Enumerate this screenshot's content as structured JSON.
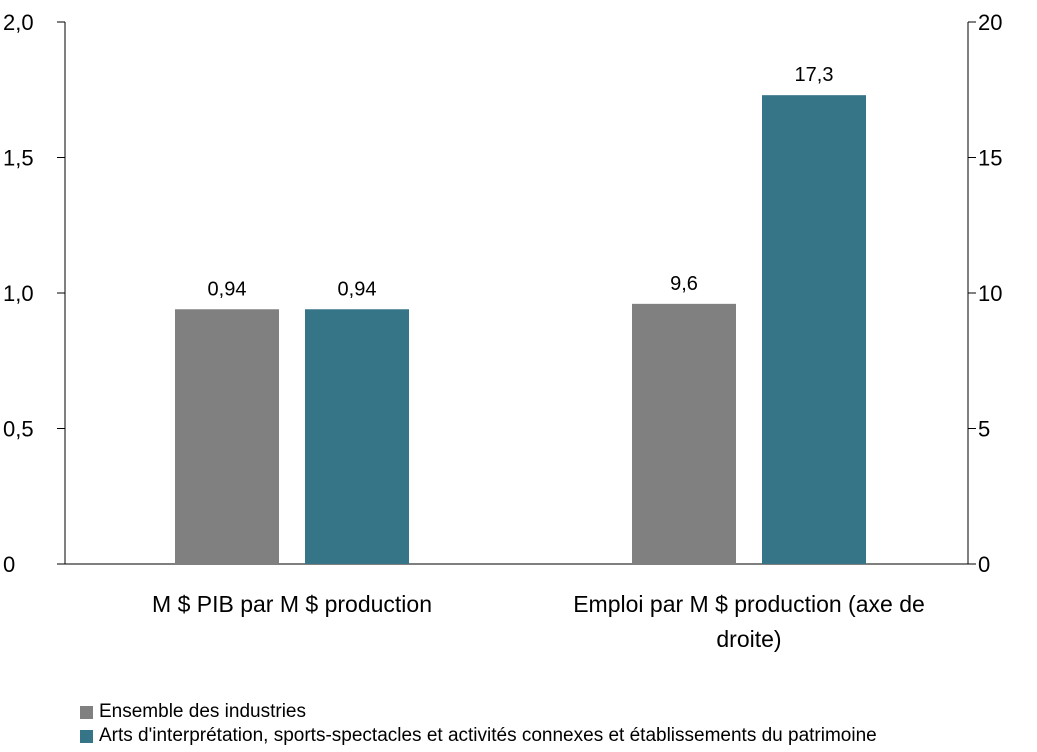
{
  "chart_data": {
    "type": "bar",
    "categories": [
      [
        "M $ PIB par M $ production"
      ],
      [
        "Emploi par M $ production (axe de",
        "droite)"
      ]
    ],
    "left_axis": {
      "ylim": [
        0,
        2.0
      ],
      "ticks": [
        "0",
        "0,5",
        "1,0",
        "1,5",
        "2,0"
      ]
    },
    "right_axis": {
      "ylim": [
        0,
        20
      ],
      "ticks": [
        "0",
        "5",
        "10",
        "15",
        "20"
      ]
    },
    "series": [
      {
        "name": "Ensemble des industries",
        "color": "#808080",
        "values": [
          0.94,
          9.6
        ],
        "labels": [
          "0,94",
          "9,6"
        ]
      },
      {
        "name": "Arts d'interprétation, sports-spectacles et activités connexes et établissements du patrimoine",
        "color": "#367588",
        "values": [
          0.94,
          17.3
        ],
        "labels": [
          "0,94",
          "17,3"
        ]
      }
    ],
    "axis_for_category": [
      "left",
      "right"
    ],
    "legend_position": "bottom-left",
    "grid": false
  }
}
